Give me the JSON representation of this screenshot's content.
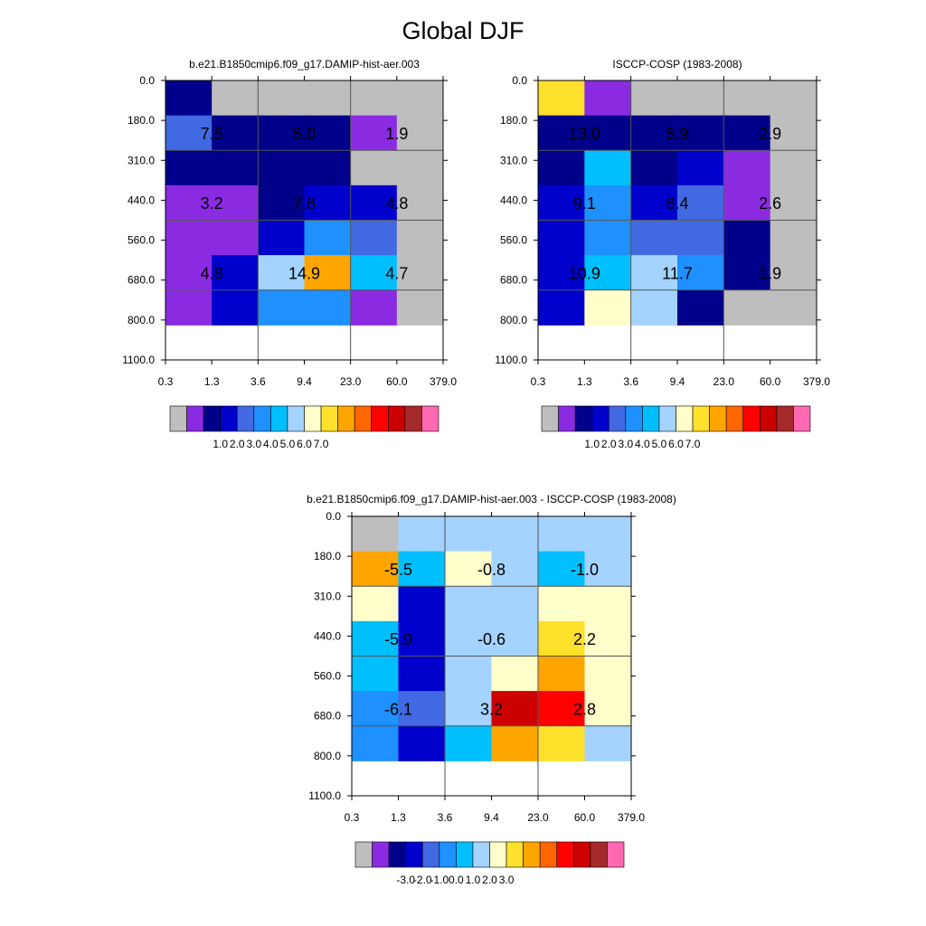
{
  "title": "Global DJF",
  "colors": {
    "missing": "#bebebe",
    "panel_palette": [
      "#bebebe",
      "#8a2be2",
      "#00008b",
      "#0000cd",
      "#4169e1",
      "#1e90ff",
      "#00bfff",
      "#a4d3ff",
      "#ffffcc",
      "#ffe12c",
      "#ffa500",
      "#ff6600",
      "#ff0000",
      "#cc0000",
      "#a52a2a",
      "#ff69b4"
    ],
    "axis": "#000000",
    "grid": "#555555"
  },
  "chart_data": [
    {
      "type": "heatmap",
      "title": "b.e21.B1850cmip6.f09_g17.DAMIP-hist-aer.003",
      "x_tick_labels": [
        "0.3",
        "1.3",
        "3.6",
        "9.4",
        "23.0",
        "60.0",
        "379.0"
      ],
      "y_tick_labels": [
        "0.0",
        "180.0",
        "310.0",
        "440.0",
        "560.0",
        "680.0",
        "800.0",
        "1100.0"
      ],
      "cell_colors": [
        [
          2,
          0,
          0,
          0,
          0,
          0
        ],
        [
          4,
          2,
          2,
          2,
          1,
          0
        ],
        [
          2,
          2,
          2,
          2,
          0,
          0
        ],
        [
          1,
          1,
          2,
          3,
          3,
          0
        ],
        [
          1,
          1,
          3,
          5,
          4,
          0
        ],
        [
          1,
          3,
          7,
          10,
          6,
          0
        ],
        [
          1,
          3,
          5,
          5,
          1,
          0
        ]
      ],
      "block_values": [
        [
          "7.5",
          "5.0",
          "1.9"
        ],
        [
          "3.2",
          "7.8",
          "4.8"
        ],
        [
          "4.8",
          "14.9",
          "4.7"
        ]
      ],
      "colorbar_labels": [
        "1.0",
        "2.0",
        "3.0",
        "4.0",
        "5.0",
        "6.0",
        "7.0"
      ]
    },
    {
      "type": "heatmap",
      "title": "ISCCP-COSP (1983-2008)",
      "x_tick_labels": [
        "0.3",
        "1.3",
        "3.6",
        "9.4",
        "23.0",
        "60.0",
        "379.0"
      ],
      "y_tick_labels": [
        "0.0",
        "180.0",
        "310.0",
        "440.0",
        "560.0",
        "680.0",
        "800.0",
        "1100.0"
      ],
      "cell_colors": [
        [
          9,
          1,
          0,
          0,
          0,
          0
        ],
        [
          2,
          2,
          2,
          2,
          2,
          0
        ],
        [
          2,
          6,
          2,
          3,
          1,
          0
        ],
        [
          3,
          5,
          3,
          4,
          1,
          0
        ],
        [
          3,
          5,
          4,
          4,
          2,
          0
        ],
        [
          3,
          6,
          7,
          5,
          2,
          0
        ],
        [
          3,
          8,
          7,
          2,
          0,
          0
        ]
      ],
      "block_values": [
        [
          "13.0",
          "5.9",
          "2.9"
        ],
        [
          "9.1",
          "8.4",
          "2.6"
        ],
        [
          "10.9",
          "11.7",
          "1.9"
        ]
      ],
      "colorbar_labels": [
        "1.0",
        "2.0",
        "3.0",
        "4.0",
        "5.0",
        "6.0",
        "7.0"
      ]
    },
    {
      "type": "heatmap",
      "title": "b.e21.B1850cmip6.f09_g17.DAMIP-hist-aer.003 - ISCCP-COSP (1983-2008)",
      "x_tick_labels": [
        "0.3",
        "1.3",
        "3.6",
        "9.4",
        "23.0",
        "60.0",
        "379.0"
      ],
      "y_tick_labels": [
        "0.0",
        "180.0",
        "310.0",
        "440.0",
        "560.0",
        "680.0",
        "800.0",
        "1100.0"
      ],
      "cell_colors": [
        [
          0,
          7,
          7,
          7,
          7,
          7
        ],
        [
          10,
          6,
          8,
          7,
          6,
          7
        ],
        [
          8,
          3,
          7,
          7,
          8,
          8
        ],
        [
          6,
          3,
          7,
          7,
          9,
          8
        ],
        [
          6,
          3,
          7,
          8,
          10,
          8
        ],
        [
          5,
          4,
          7,
          13,
          12,
          8
        ],
        [
          5,
          3,
          6,
          10,
          9,
          7
        ]
      ],
      "block_values": [
        [
          "-5.5",
          "-0.8",
          "-1.0"
        ],
        [
          "-5.9",
          "-0.6",
          "2.2"
        ],
        [
          "-6.1",
          "3.2",
          "2.8"
        ]
      ],
      "colorbar_labels": [
        "-3.0",
        "-2.0",
        "-1.0",
        "0.0",
        "1.0",
        "2.0",
        "3.0"
      ]
    }
  ]
}
